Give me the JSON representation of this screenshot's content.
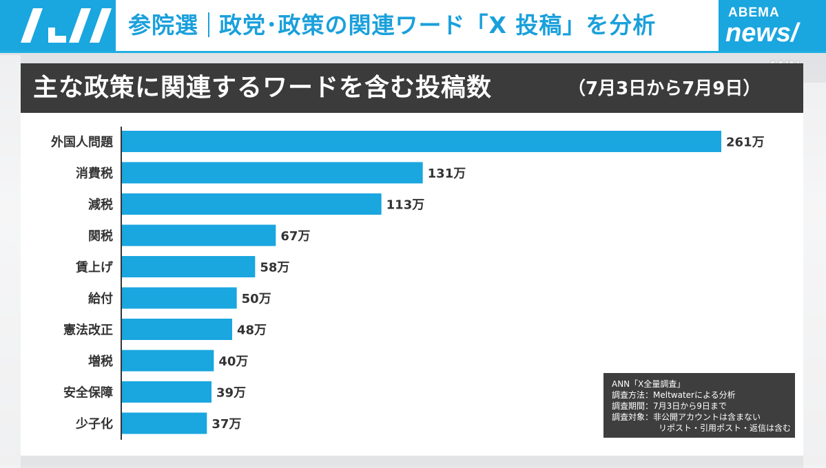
{
  "header": {
    "prefix": "参院選",
    "title": "政党･政策の関連ワード「X 投稿」を分析"
  },
  "badge": {
    "brand_small": "ABEMA",
    "brand_large": "news/"
  },
  "watermark": "ANN",
  "chart_data": {
    "type": "bar",
    "orientation": "horizontal",
    "title": "主な政策に関連するワードを含む投稿数",
    "subtitle": "（7月3日から7月9日）",
    "unit": "万",
    "categories": [
      "外国人問題",
      "消費税",
      "減税",
      "関税",
      "賃上げ",
      "給付",
      "憲法改正",
      "増税",
      "安全保障",
      "少子化"
    ],
    "values": [
      261,
      131,
      113,
      67,
      58,
      50,
      48,
      40,
      39,
      37
    ],
    "value_labels": [
      "261万",
      "131万",
      "113万",
      "67万",
      "58万",
      "50万",
      "48万",
      "40万",
      "39万",
      "37万"
    ],
    "bar_color": "#1aa6df",
    "grid": false
  },
  "source": {
    "line1": "ANN「X全量調査」",
    "line2": "調査方法：Meltwaterによる分析",
    "line3": "調査期間：7月3日から9日まで",
    "line4": "調査対象：非公開アカウントは含まない",
    "line5": "リポスト・引用ポスト・返信は含む"
  },
  "colors": {
    "accent": "#1aa6df",
    "title_bar": "#3b3b3b",
    "source_box": "#3e3e3e"
  }
}
